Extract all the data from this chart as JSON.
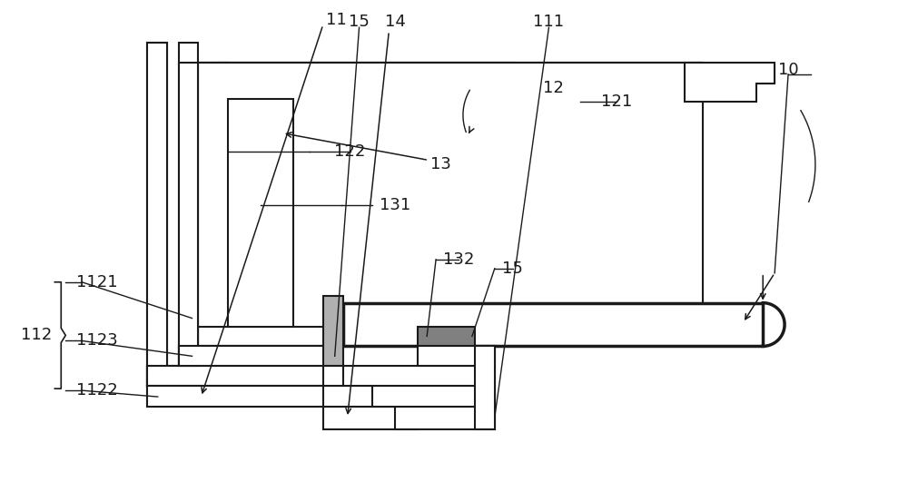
{
  "bg_color": "#ffffff",
  "lc": "#1a1a1a",
  "lw": 1.5,
  "tlw": 2.5,
  "fig_w": 10.0,
  "fig_h": 5.31
}
